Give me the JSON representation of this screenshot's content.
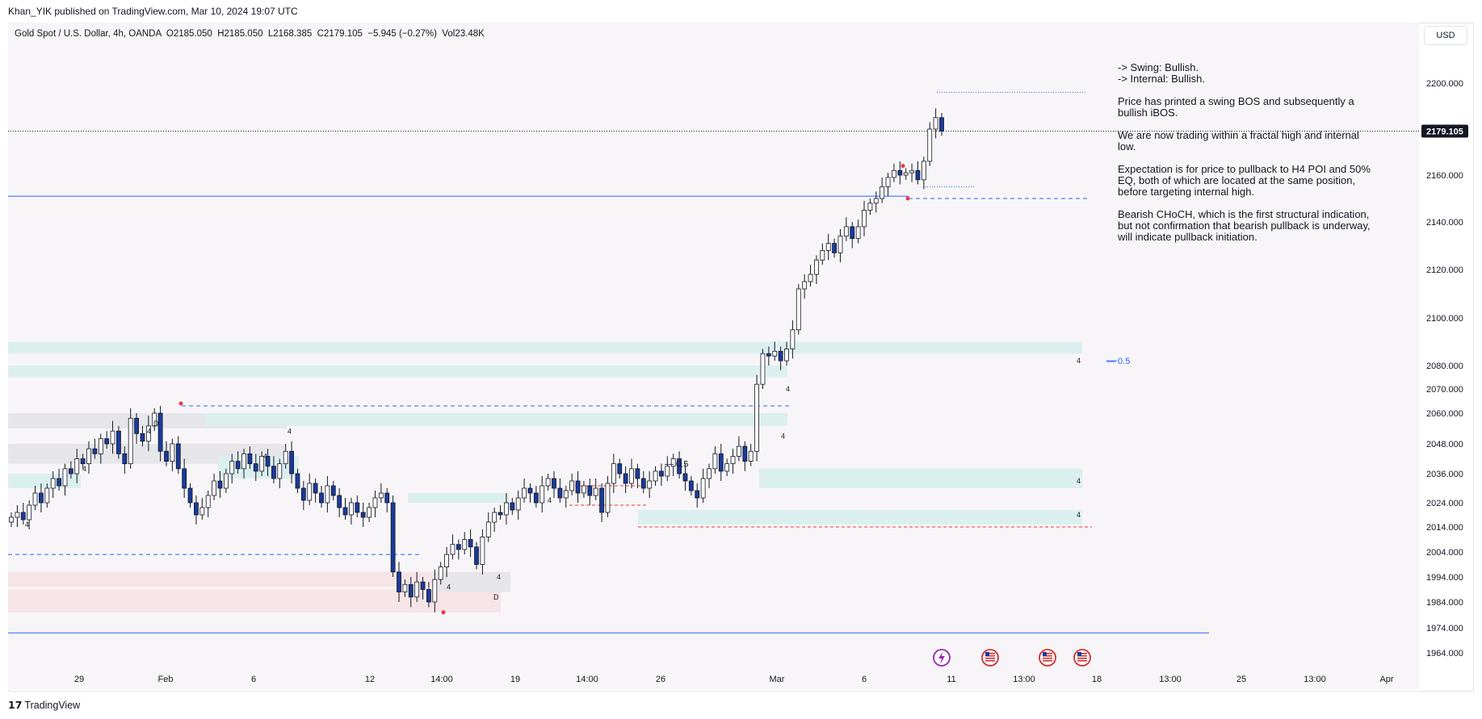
{
  "header": {
    "published": "Khan_YIK published on TradingView.com, Mar 10, 2024 19:07 UTC",
    "legend": "Gold Spot / U.S. Dollar, 4h, OANDA  O2185.050  H2185.050  L2168.385  C2179.105  −5.945 (−0.27%)  Vol23.48K",
    "currency": "USD"
  },
  "footer": {
    "brand": "TradingView",
    "logo": "tradingview-logo-icon"
  },
  "notes": [
    "-> Swing:  Bullish.",
    "-> Internal:  Bullish.",
    "Price has printed a swing BOS and subsequently a bullish iBOS.",
    "We are now trading within a fractal high and internal low.",
    "Expectation is for price to pullback to H4 POI and 50% EQ, both of which are located at the same position, before targeting internal high.",
    "Bearish CHoCH, which is the first structural indication, but not confirmation that bearish pullback is underway, will indicate pullback initiation."
  ],
  "chart_data": {
    "type": "candlestick",
    "symbol": "Gold Spot / U.S. Dollar",
    "timeframe": "4h",
    "exchange": "OANDA",
    "ohlc_last": {
      "open": 2185.05,
      "high": 2185.05,
      "low": 2168.385,
      "close": 2179.105,
      "change": -5.945,
      "change_pct": -0.27,
      "volume": "23.48K"
    },
    "last_price_label": "2179.105",
    "y_ticks": [
      2200,
      2180,
      2160,
      2140,
      2120,
      2100,
      2080,
      2070,
      2060,
      2048,
      2036,
      2024,
      2014,
      2004,
      1994,
      1984,
      1974,
      1964
    ],
    "y_tick_labels": [
      "2200.000",
      "2160.000",
      "2140.000",
      "2120.000",
      "2100.000",
      "2080.000",
      "2070.000",
      "2060.000",
      "2048.000",
      "2036.000",
      "2024.000",
      "2014.000",
      "2004.000",
      "1994.000",
      "1984.000",
      "1974.000",
      "1964.000"
    ],
    "x_tick_labels": [
      "29",
      "Feb",
      "6",
      "12",
      "14:00",
      "19",
      "14:00",
      "26",
      "Mar",
      "6",
      "11",
      "13:00",
      "18",
      "13:00",
      "25",
      "13:00",
      "Apr"
    ],
    "colors": {
      "up": "#ffffff",
      "down": "#1a3a9c",
      "wick": "#131722",
      "zone": "#dcefef",
      "bear_zone": "#f6e4e6",
      "gray_zone": "#e6e6ea",
      "level": "#2962ff",
      "choch": "#f23645"
    },
    "annotations": {
      "eq_label": "— 0.5",
      "eq_label_mid": "— 0.5",
      "zone_tf": "4",
      "daily": "D"
    },
    "closes": [
      2018,
      2020,
      2017,
      2023,
      2028,
      2024,
      2030,
      2034,
      2031,
      2038,
      2036,
      2042,
      2040,
      2046,
      2044,
      2050,
      2048,
      2053,
      2044,
      2040,
      2058,
      2052,
      2049,
      2055,
      2060,
      2045,
      2041,
      2048,
      2038,
      2030,
      2024,
      2019,
      2022,
      2027,
      2033,
      2030,
      2036,
      2041,
      2038,
      2044,
      2040,
      2037,
      2043,
      2039,
      2034,
      2040,
      2045,
      2036,
      2030,
      2025,
      2032,
      2028,
      2024,
      2031,
      2027,
      2022,
      2019,
      2024,
      2020,
      2018,
      2022,
      2026,
      2028,
      2024,
      1996,
      1988,
      1991,
      1986,
      1992,
      1989,
      1984,
      1993,
      1998,
      2003,
      2007,
      2005,
      2009,
      2006,
      1999,
      2010,
      2016,
      2020,
      2019,
      2024,
      2021,
      2026,
      2030,
      2028,
      2024,
      2031,
      2034,
      2030,
      2026,
      2029,
      2033,
      2028,
      2031,
      2027,
      2030,
      2020,
      2032,
      2040,
      2036,
      2032,
      2038,
      2034,
      2030,
      2033,
      2037,
      2035,
      2039,
      2042,
      2036,
      2033,
      2029,
      2026,
      2034,
      2038,
      2044,
      2037,
      2040,
      2043,
      2047,
      2041,
      2045,
      2072,
      2085,
      2084,
      2086,
      2082,
      2087,
      2095,
      2112,
      2115,
      2118,
      2124,
      2128,
      2131,
      2127,
      2134,
      2138,
      2133,
      2138,
      2145,
      2148,
      2150,
      2155,
      2159,
      2162,
      2160,
      2161,
      2162,
      2158,
      2166,
      2180,
      2185,
      2179.105
    ]
  }
}
